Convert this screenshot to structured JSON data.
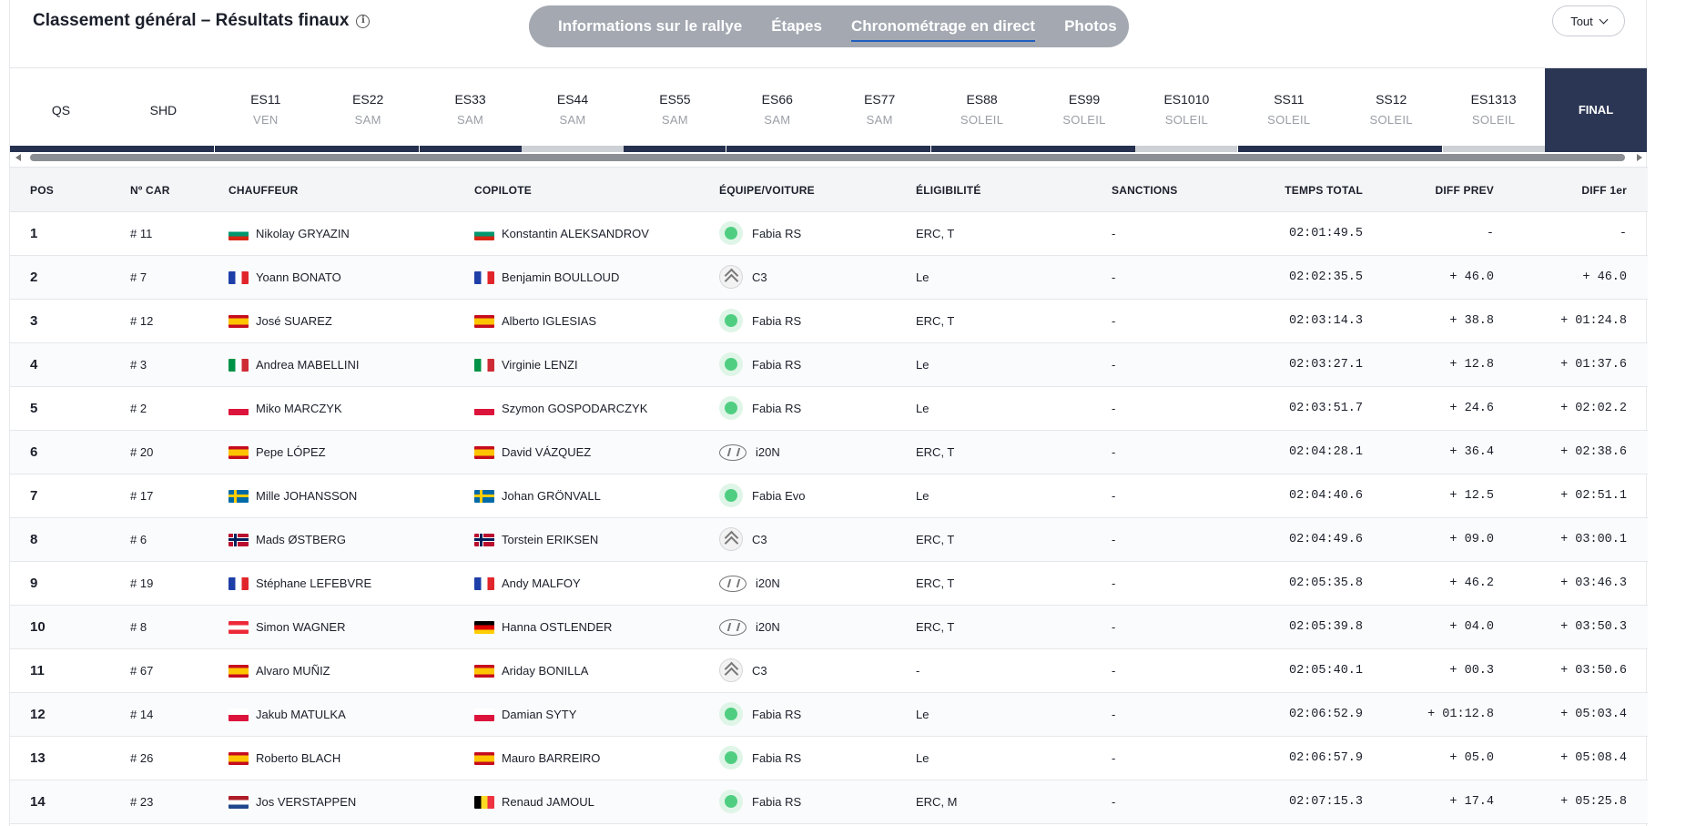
{
  "header": {
    "title": "Classement général – Résultats finaux",
    "nav_tabs": [
      {
        "label": "Informations sur le rallye",
        "active": false
      },
      {
        "label": "Étapes",
        "active": false
      },
      {
        "label": "Chronométrage en direct",
        "active": true
      },
      {
        "label": "Photos",
        "active": false
      }
    ],
    "filter_value": "Tout"
  },
  "stages": [
    {
      "name": "QS",
      "day": "",
      "bar": "dark"
    },
    {
      "name": "SHD",
      "day": "",
      "bar": "dark"
    },
    {
      "name": "ES11",
      "day": "VEN",
      "bar": "dark"
    },
    {
      "name": "ES22",
      "day": "SAM",
      "bar": "dark"
    },
    {
      "name": "ES33",
      "day": "SAM",
      "bar": "dark"
    },
    {
      "name": "ES44",
      "day": "SAM",
      "bar": "light"
    },
    {
      "name": "ES55",
      "day": "SAM",
      "bar": "dark"
    },
    {
      "name": "ES66",
      "day": "SAM",
      "bar": "dark"
    },
    {
      "name": "ES77",
      "day": "SAM",
      "bar": "dark"
    },
    {
      "name": "ES88",
      "day": "SOLEIL",
      "bar": "dark"
    },
    {
      "name": "ES99",
      "day": "SOLEIL",
      "bar": "dark"
    },
    {
      "name": "ES1010",
      "day": "SOLEIL",
      "bar": "light"
    },
    {
      "name": "SS11",
      "day": "SOLEIL",
      "bar": "dark"
    },
    {
      "name": "SS12",
      "day": "SOLEIL",
      "bar": "dark"
    },
    {
      "name": "ES1313",
      "day": "SOLEIL",
      "bar": "light"
    },
    {
      "name": "FINAL",
      "day": "",
      "bar": "final"
    }
  ],
  "columns": {
    "pos": "POS",
    "car": "Nº CAR",
    "driver": "CHAUFFEUR",
    "codriver": "COPILOTE",
    "team": "ÉQUIPE/VOITURE",
    "eligibility": "ÉLIGIBILITÉ",
    "penalties": "SANCTIONS",
    "total": "TEMPS TOTAL",
    "diff_prev": "DIFF PREV",
    "diff_first": "DIFF 1er"
  },
  "rows": [
    {
      "pos": "1",
      "car": "# 11",
      "driver": "Nikolay GRYAZIN",
      "driver_flag": "BG",
      "codriver": "Konstantin ALEKSANDROV",
      "codriver_flag": "BG",
      "brand": "skoda",
      "car_model": "Fabia RS",
      "elig": "ERC, T",
      "pen": "-",
      "total": "02:01:49.5",
      "prev": "-",
      "first": "-"
    },
    {
      "pos": "2",
      "car": "# 7",
      "driver": "Yoann BONATO",
      "driver_flag": "FR",
      "codriver": "Benjamin BOULLOUD",
      "codriver_flag": "FR",
      "brand": "citroen",
      "car_model": "C3",
      "elig": "Le",
      "pen": "-",
      "total": "02:02:35.5",
      "prev": "+ 46.0",
      "first": "+ 46.0"
    },
    {
      "pos": "3",
      "car": "# 12",
      "driver": "José SUAREZ",
      "driver_flag": "ES",
      "codriver": "Alberto IGLESIAS",
      "codriver_flag": "ES",
      "brand": "skoda",
      "car_model": "Fabia RS",
      "elig": "ERC, T",
      "pen": "-",
      "total": "02:03:14.3",
      "prev": "+ 38.8",
      "first": "+ 01:24.8"
    },
    {
      "pos": "4",
      "car": "# 3",
      "driver": "Andrea MABELLINI",
      "driver_flag": "IT",
      "codriver": "Virginie LENZI",
      "codriver_flag": "IT",
      "brand": "skoda",
      "car_model": "Fabia RS",
      "elig": "Le",
      "pen": "-",
      "total": "02:03:27.1",
      "prev": "+ 12.8",
      "first": "+ 01:37.6"
    },
    {
      "pos": "5",
      "car": "# 2",
      "driver": "Miko MARCZYK",
      "driver_flag": "PL",
      "codriver": "Szymon GOSPODARCZYK",
      "codriver_flag": "PL",
      "brand": "skoda",
      "car_model": "Fabia RS",
      "elig": "Le",
      "pen": "-",
      "total": "02:03:51.7",
      "prev": "+ 24.6",
      "first": "+ 02:02.2"
    },
    {
      "pos": "6",
      "car": "# 20",
      "driver": "Pepe LÓPEZ",
      "driver_flag": "ES",
      "codriver": "David VÁZQUEZ",
      "codriver_flag": "ES",
      "brand": "hyundai",
      "car_model": "i20N",
      "elig": "ERC, T",
      "pen": "-",
      "total": "02:04:28.1",
      "prev": "+ 36.4",
      "first": "+ 02:38.6"
    },
    {
      "pos": "7",
      "car": "# 17",
      "driver": "Mille JOHANSSON",
      "driver_flag": "SE",
      "codriver": "Johan GRÖNVALL",
      "codriver_flag": "SE",
      "brand": "skoda",
      "car_model": "Fabia Evo",
      "elig": "Le",
      "pen": "-",
      "total": "02:04:40.6",
      "prev": "+ 12.5",
      "first": "+ 02:51.1"
    },
    {
      "pos": "8",
      "car": "# 6",
      "driver": "Mads ØSTBERG",
      "driver_flag": "NO",
      "codriver": "Torstein ERIKSEN",
      "codriver_flag": "NO",
      "brand": "citroen",
      "car_model": "C3",
      "elig": "ERC, T",
      "pen": "-",
      "total": "02:04:49.6",
      "prev": "+ 09.0",
      "first": "+ 03:00.1"
    },
    {
      "pos": "9",
      "car": "# 19",
      "driver": "Stéphane LEFEBVRE",
      "driver_flag": "FR",
      "codriver": "Andy MALFOY",
      "codriver_flag": "FR",
      "brand": "hyundai",
      "car_model": "i20N",
      "elig": "ERC, T",
      "pen": "-",
      "total": "02:05:35.8",
      "prev": "+ 46.2",
      "first": "+ 03:46.3"
    },
    {
      "pos": "10",
      "car": "# 8",
      "driver": "Simon WAGNER",
      "driver_flag": "AT",
      "codriver": "Hanna OSTLENDER",
      "codriver_flag": "DE",
      "brand": "hyundai",
      "car_model": "i20N",
      "elig": "ERC, T",
      "pen": "-",
      "total": "02:05:39.8",
      "prev": "+ 04.0",
      "first": "+ 03:50.3"
    },
    {
      "pos": "11",
      "car": "# 67",
      "driver": "Alvaro MUÑIZ",
      "driver_flag": "ES",
      "codriver": "Ariday BONILLA",
      "codriver_flag": "ES",
      "brand": "citroen",
      "car_model": "C3",
      "elig": "-",
      "pen": "-",
      "total": "02:05:40.1",
      "prev": "+ 00.3",
      "first": "+ 03:50.6"
    },
    {
      "pos": "12",
      "car": "# 14",
      "driver": "Jakub MATULKA",
      "driver_flag": "PL",
      "codriver": "Damian SYTY",
      "codriver_flag": "PL",
      "brand": "skoda",
      "car_model": "Fabia RS",
      "elig": "Le",
      "pen": "-",
      "total": "02:06:52.9",
      "prev": "+ 01:12.8",
      "first": "+ 05:03.4"
    },
    {
      "pos": "13",
      "car": "# 26",
      "driver": "Roberto BLACH",
      "driver_flag": "ES",
      "codriver": "Mauro BARREIRO",
      "codriver_flag": "ES",
      "brand": "skoda",
      "car_model": "Fabia RS",
      "elig": "Le",
      "pen": "-",
      "total": "02:06:57.9",
      "prev": "+ 05.0",
      "first": "+ 05:08.4"
    },
    {
      "pos": "14",
      "car": "# 23",
      "driver": "Jos VERSTAPPEN",
      "driver_flag": "NL",
      "codriver": "Renaud JAMOUL",
      "codriver_flag": "BE",
      "brand": "skoda",
      "car_model": "Fabia RS",
      "elig": "ERC, M",
      "pen": "-",
      "total": "02:07:15.3",
      "prev": "+ 17.4",
      "first": "+ 05:25.8"
    }
  ]
}
